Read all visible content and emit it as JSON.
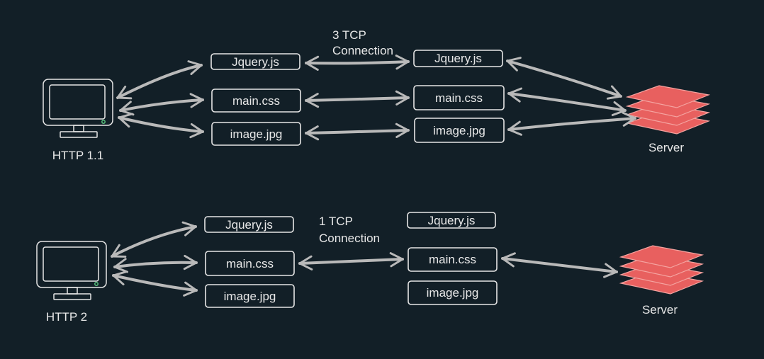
{
  "colors": {
    "background": "#121f27",
    "stroke": "#e6e6e6",
    "arrow": "#b9b9b9",
    "server": "#e8605f",
    "server_edge": "#f4a3a0"
  },
  "icons": {
    "client": "monitor-icon",
    "server": "server-stack-icon"
  },
  "http11": {
    "client_label": "HTTP 1.1",
    "connection_label_line1": "3 TCP",
    "connection_label_line2": "Connection",
    "client_files": [
      "Jquery.js",
      "main.css",
      "image.jpg"
    ],
    "server_files": [
      "Jquery.js",
      "main.css",
      "image.jpg"
    ],
    "server_label": "Server"
  },
  "http2": {
    "client_label": "HTTP 2",
    "connection_label_line1": "1 TCP",
    "connection_label_line2": "Connection",
    "client_files": [
      "Jquery.js",
      "main.css",
      "image.jpg"
    ],
    "server_files": [
      "Jquery.js",
      "main.css",
      "image.jpg"
    ],
    "server_label": "Server"
  }
}
